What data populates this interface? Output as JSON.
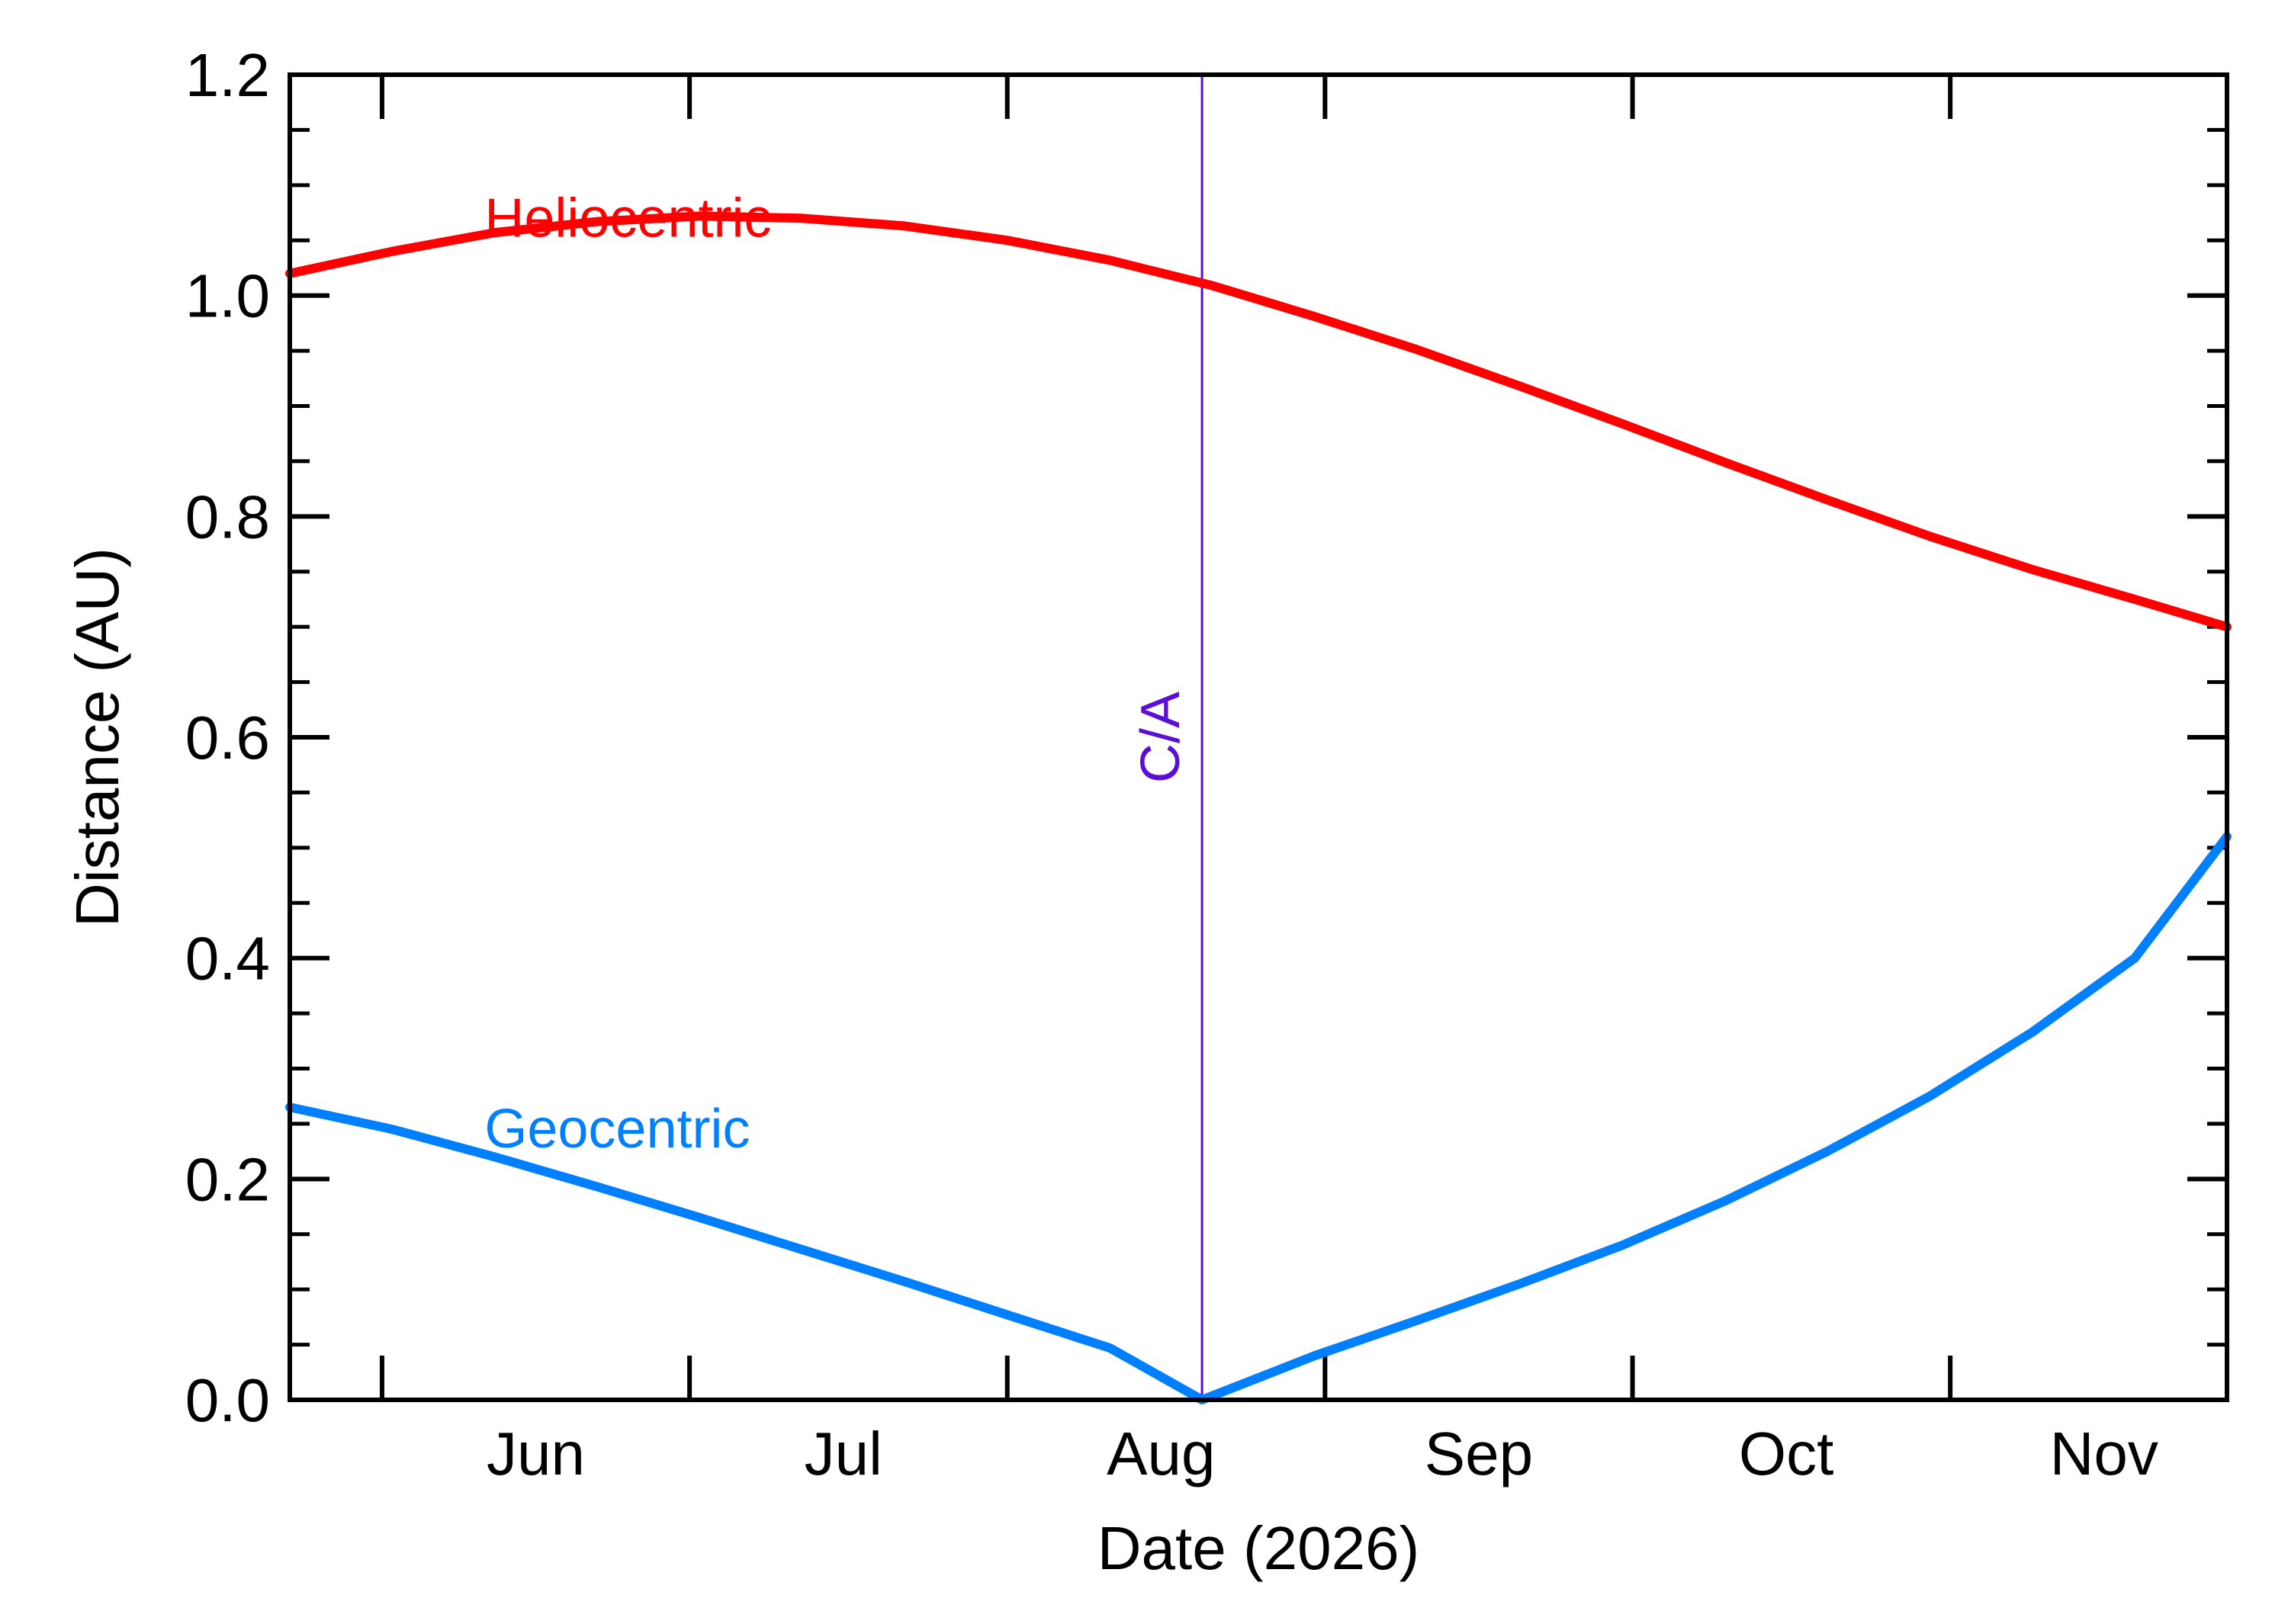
{
  "chart_data": {
    "type": "line",
    "title": "",
    "xlabel": "Date (2026)",
    "ylabel": "Distance (AU)",
    "x_axis": {
      "type": "date",
      "start": "2026-05-23",
      "end": "2026-11-28",
      "tick_labels": [
        "Jun",
        "Jul",
        "Aug",
        "Sep",
        "Oct",
        "Nov"
      ],
      "major_ticks": [
        "2026-06-01",
        "2026-07-01",
        "2026-08-01",
        "2026-09-01",
        "2026-10-01",
        "2026-11-01"
      ],
      "label_dates": [
        "2026-06-16",
        "2026-07-16",
        "2026-08-16",
        "2026-09-16",
        "2026-10-16",
        "2026-11-16"
      ]
    },
    "ylim": [
      0.0,
      1.2
    ],
    "y_ticks": [
      0.0,
      0.2,
      0.4,
      0.6,
      0.8,
      1.0,
      1.2
    ],
    "y_tick_labels": [
      "0.0",
      "0.2",
      "0.4",
      "0.6",
      "0.8",
      "1.0",
      "1.2"
    ],
    "y_minor_step": 0.05,
    "grid": false,
    "annotations": {
      "closest_approach": {
        "label": "C/A",
        "date": "2026-08-20",
        "color": "#5b0fd6"
      }
    },
    "series": [
      {
        "name": "Heliocentric",
        "color": "#ff0000",
        "label_at": {
          "date": "2026-06-11",
          "value": 1.07
        },
        "points": [
          [
            "2026-05-23",
            1.02
          ],
          [
            "2026-06-02",
            1.04
          ],
          [
            "2026-06-12",
            1.057
          ],
          [
            "2026-06-22",
            1.067
          ],
          [
            "2026-07-02",
            1.072
          ],
          [
            "2026-07-12",
            1.07
          ],
          [
            "2026-07-22",
            1.063
          ],
          [
            "2026-08-01",
            1.05
          ],
          [
            "2026-08-11",
            1.032
          ],
          [
            "2026-08-21",
            1.009
          ],
          [
            "2026-08-31",
            0.981
          ],
          [
            "2026-09-10",
            0.951
          ],
          [
            "2026-09-20",
            0.918
          ],
          [
            "2026-09-30",
            0.884
          ],
          [
            "2026-10-10",
            0.849
          ],
          [
            "2026-10-20",
            0.815
          ],
          [
            "2026-10-30",
            0.782
          ],
          [
            "2026-11-09",
            0.752
          ],
          [
            "2026-11-19",
            0.725
          ],
          [
            "2026-11-28",
            0.7
          ]
        ]
      },
      {
        "name": "Geocentric",
        "color": "#0080ff",
        "label_at": {
          "date": "2026-06-11",
          "value": 0.245
        },
        "points": [
          [
            "2026-05-23",
            0.265
          ],
          [
            "2026-06-02",
            0.245
          ],
          [
            "2026-06-12",
            0.22
          ],
          [
            "2026-06-22",
            0.193
          ],
          [
            "2026-07-02",
            0.165
          ],
          [
            "2026-07-12",
            0.136
          ],
          [
            "2026-07-22",
            0.107
          ],
          [
            "2026-08-01",
            0.077
          ],
          [
            "2026-08-11",
            0.047
          ],
          [
            "2026-08-20",
            0.0
          ],
          [
            "2026-08-31",
            0.04
          ],
          [
            "2026-09-10",
            0.072
          ],
          [
            "2026-09-20",
            0.105
          ],
          [
            "2026-09-30",
            0.14
          ],
          [
            "2026-10-10",
            0.18
          ],
          [
            "2026-10-20",
            0.225
          ],
          [
            "2026-10-30",
            0.275
          ],
          [
            "2026-11-09",
            0.333
          ],
          [
            "2026-11-19",
            0.4
          ],
          [
            "2026-11-28",
            0.51
          ]
        ]
      }
    ]
  }
}
